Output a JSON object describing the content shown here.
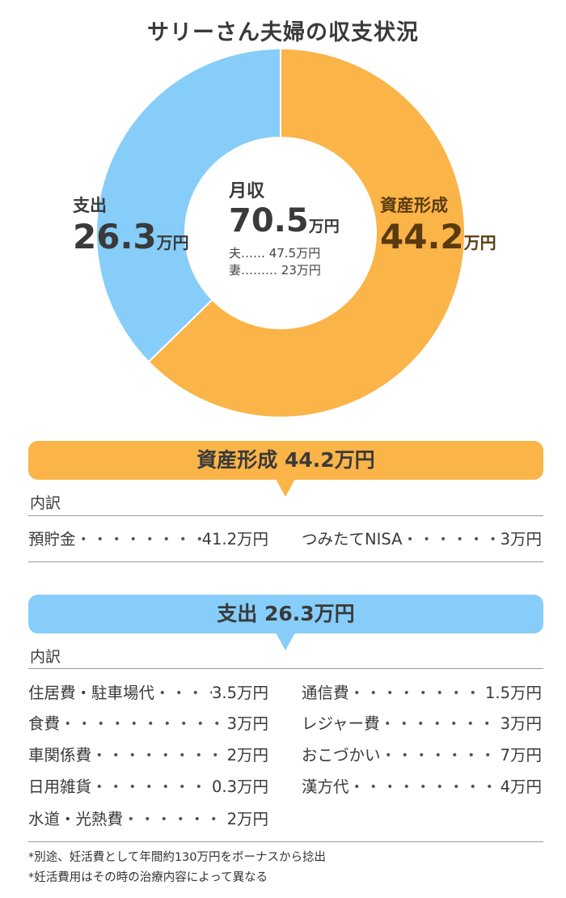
{
  "chart_data": {
    "type": "donut",
    "title": "サリーさん夫婦の収支状況",
    "unit": "万円",
    "slices": [
      {
        "name": "資産形成",
        "value": 44.2,
        "color": "#fab448"
      },
      {
        "name": "支出",
        "value": 26.3,
        "color": "#86cdfa"
      }
    ],
    "center": {
      "label": "月収",
      "value": "70.5",
      "unit": "万円",
      "breakdown": [
        {
          "name": "夫",
          "dots": "……",
          "amount": "47.5万円"
        },
        {
          "name": "妻",
          "dots": "………",
          "amount": "23万円"
        }
      ]
    }
  },
  "labels": {
    "asset_name": "資産形成",
    "asset_value": "44.2",
    "asset_unit": "万円",
    "expense_name": "支出",
    "expense_value": "26.3",
    "expense_unit": "万円"
  },
  "asset_section": {
    "banner": "資産形成 44.2万円",
    "subhead": "内訳",
    "items": [
      {
        "name": "預貯金",
        "amount": "41.2万円"
      },
      {
        "name": "つみたてNISA",
        "amount": "3万円"
      }
    ]
  },
  "expense_section": {
    "banner": "支出 26.3万円",
    "subhead": "内訳",
    "items_left": [
      {
        "name": "住居費・駐車場代",
        "amount": "3.5万円"
      },
      {
        "name": "食費",
        "amount": "3万円"
      },
      {
        "name": "車関係費",
        "amount": "2万円"
      },
      {
        "name": "日用雑貨",
        "amount": "0.3万円"
      },
      {
        "name": "水道・光熱費",
        "amount": "2万円"
      }
    ],
    "items_right": [
      {
        "name": "通信費",
        "amount": "1.5万円"
      },
      {
        "name": "レジャー費",
        "amount": "3万円"
      },
      {
        "name": "おこづかい",
        "amount": "7万円"
      },
      {
        "name": "漢方代",
        "amount": "4万円"
      }
    ]
  },
  "notes": [
    "*別途、妊活費として年間約130万円をボーナスから捻出",
    "*妊活費用はその時の治療内容によって異なる"
  ],
  "dots_char": "・・・・・・・・・・・・・・・・・・・・"
}
